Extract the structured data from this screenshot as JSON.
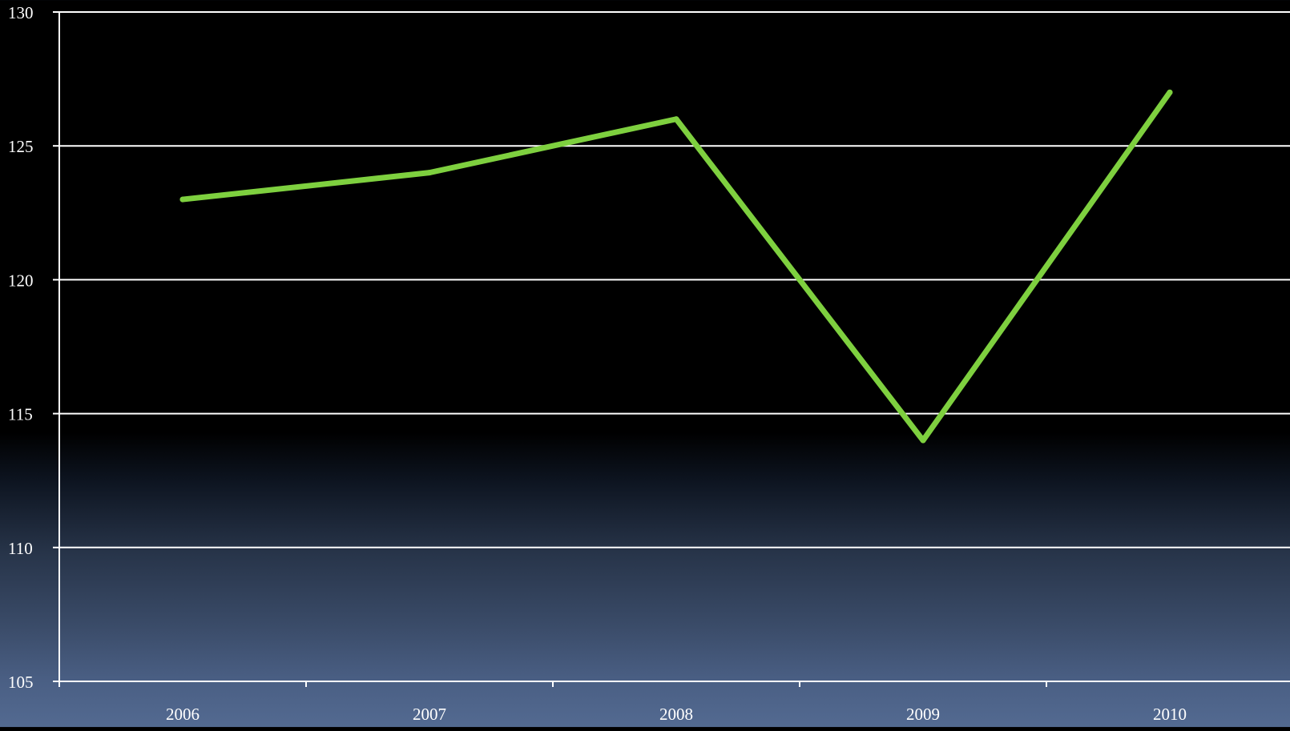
{
  "chart_data": {
    "type": "line",
    "title": "",
    "xlabel": "",
    "ylabel": "",
    "categories": [
      "2006",
      "2007",
      "2008",
      "2009",
      "2010"
    ],
    "series": [
      {
        "values": [
          123,
          124,
          126,
          114,
          127
        ]
      }
    ],
    "ylim": [
      105,
      130
    ],
    "yticks": [
      105,
      110,
      115,
      120,
      125,
      130
    ],
    "grid": true,
    "legend": "none"
  },
  "colors": {
    "line": "#7ed03f",
    "axis": "#ffffff",
    "text": "#ffffff"
  }
}
